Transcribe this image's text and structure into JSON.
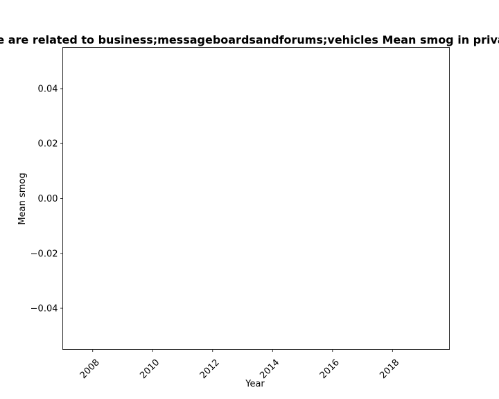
{
  "chart_data": {
    "type": "line",
    "title": "e are related to business;messageboardsandforums;vehicles Mean smog in priva",
    "xlabel": "Year",
    "ylabel": "Mean smog",
    "x": [],
    "series": [],
    "xlim": [
      2007,
      2019.9
    ],
    "ylim": [
      -0.055,
      0.055
    ],
    "x_ticks": [
      "2008",
      "2010",
      "2012",
      "2014",
      "2016",
      "2018"
    ],
    "y_ticks": [
      "0.04",
      "0.02",
      "0.00",
      "−0.02",
      "−0.04"
    ],
    "grid": false
  }
}
